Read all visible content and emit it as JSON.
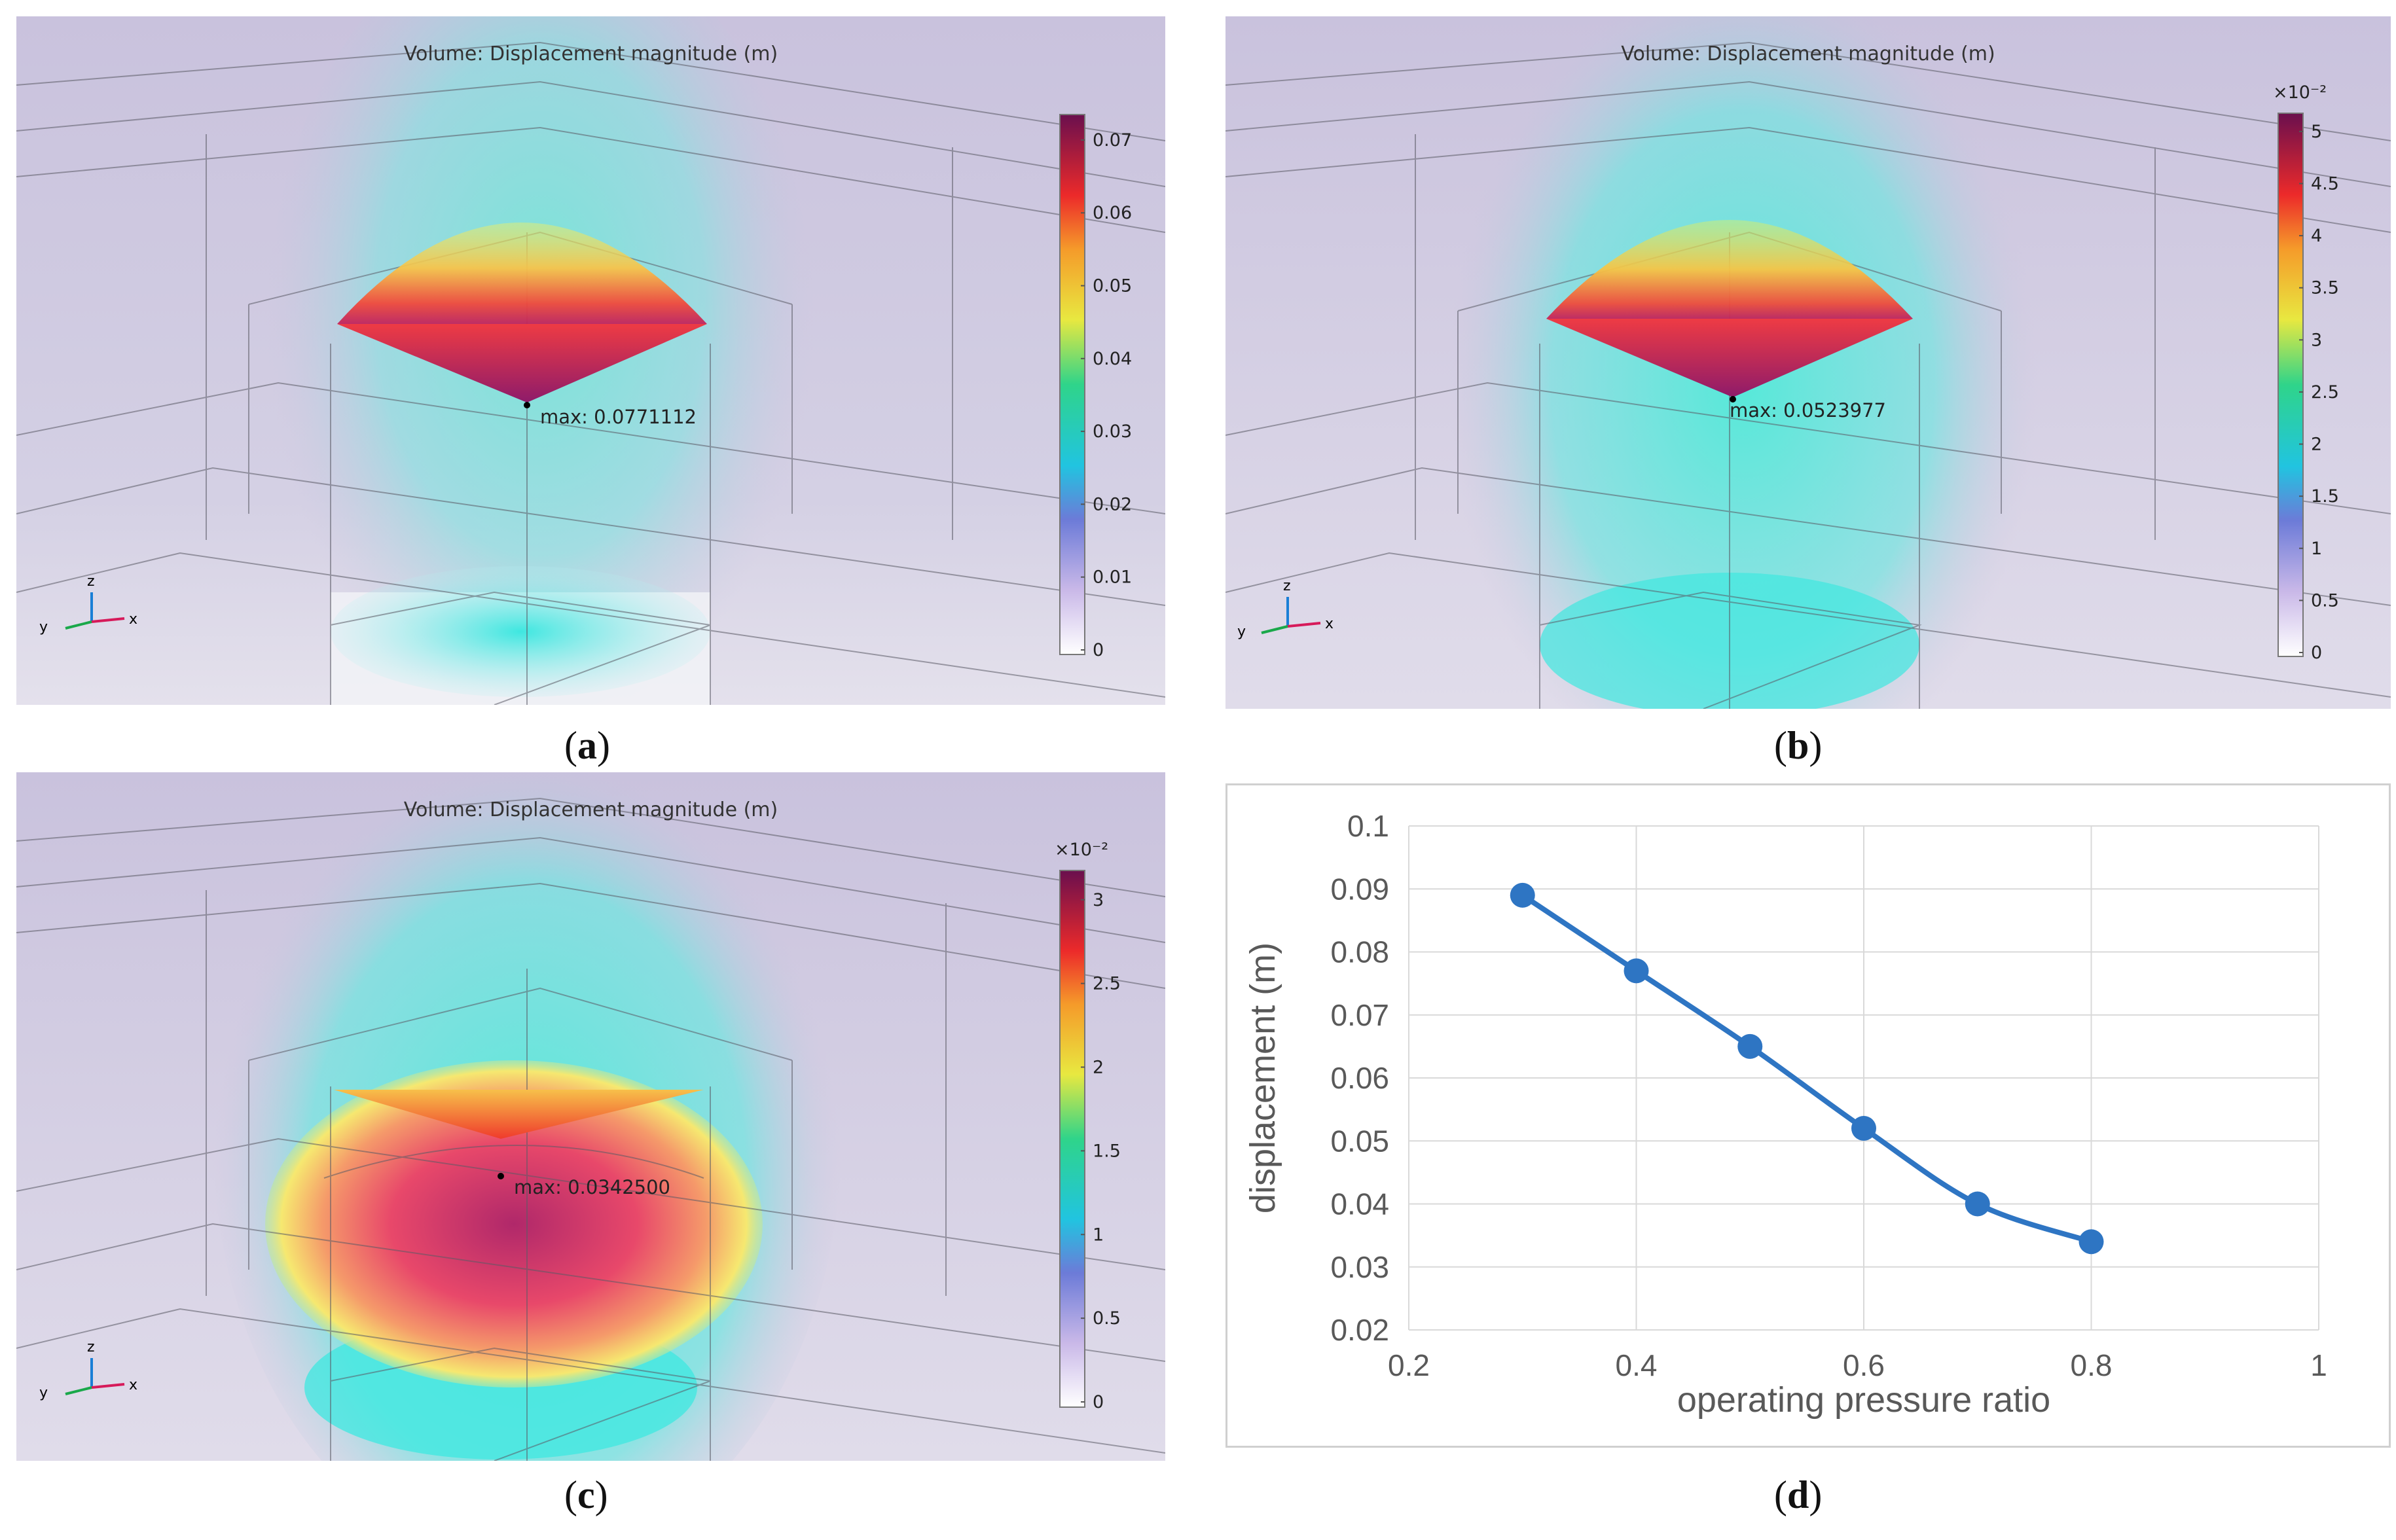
{
  "panels": [
    {
      "id": "a",
      "title": "Volume: Displacement magnitude (m)",
      "max_label": "max: 0.0771112",
      "colorbar_multiplier": "",
      "colorbar_ticks": [
        "0",
        "0.01",
        "0.02",
        "0.03",
        "0.04",
        "0.05",
        "0.06",
        "0.07"
      ],
      "caption_open": "(",
      "caption_letter": "a",
      "caption_close": ")"
    },
    {
      "id": "b",
      "title": "Volume: Displacement magnitude (m)",
      "max_label": "max: 0.0523977",
      "colorbar_multiplier": "×10⁻²",
      "colorbar_ticks": [
        "0",
        "0.5",
        "1",
        "1.5",
        "2",
        "2.5",
        "3",
        "3.5",
        "4",
        "4.5",
        "5"
      ],
      "caption_open": "(",
      "caption_letter": "b",
      "caption_close": ")"
    },
    {
      "id": "c",
      "title": "Volume: Displacement magnitude (m)",
      "max_label": "max: 0.0342500",
      "colorbar_multiplier": "×10⁻²",
      "colorbar_ticks": [
        "0",
        "0.5",
        "1",
        "1.5",
        "2",
        "2.5",
        "3"
      ],
      "caption_open": "(",
      "caption_letter": "c",
      "caption_close": ")"
    }
  ],
  "axis_triad": {
    "x": "x",
    "y": "y",
    "z": "z"
  },
  "caption_d": {
    "open": "(",
    "letter": "d",
    "close": ")"
  },
  "colors": {
    "line": "#2e75c3",
    "grid": "#d9d9d9",
    "text": "#595959"
  },
  "chart_data": {
    "type": "line",
    "title": "",
    "xlabel": "operating pressure ratio",
    "ylabel": "displacement (m)",
    "x": [
      0.3,
      0.4,
      0.5,
      0.6,
      0.7,
      0.8
    ],
    "y": [
      0.089,
      0.077,
      0.065,
      0.052,
      0.04,
      0.034
    ],
    "xlim": [
      0.2,
      1
    ],
    "ylim": [
      0.02,
      0.1
    ],
    "xticks": [
      "0.2",
      "0.4",
      "0.6",
      "0.8",
      "1"
    ],
    "yticks": [
      "0.02",
      "0.03",
      "0.04",
      "0.05",
      "0.06",
      "0.07",
      "0.08",
      "0.09",
      "0.1"
    ],
    "grid": true,
    "legend": "none"
  }
}
